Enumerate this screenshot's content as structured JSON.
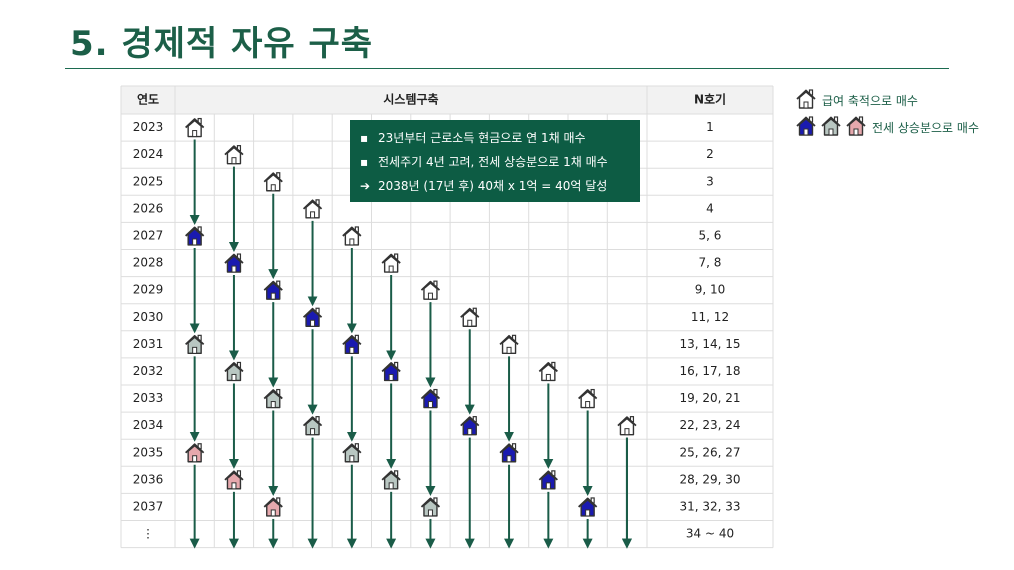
{
  "title": "5. 경제적 자유 구축",
  "table": {
    "headers": {
      "year": "연도",
      "system": "시스템구축",
      "count": "N호기"
    },
    "years": [
      "2023",
      "2024",
      "2025",
      "2026",
      "2027",
      "2028",
      "2029",
      "2030",
      "2031",
      "2032",
      "2033",
      "2034",
      "2035",
      "2036",
      "2037",
      "⋮"
    ],
    "counts": [
      "1",
      "2",
      "3",
      "4",
      "5, 6",
      "7, 8",
      "9, 10",
      "11, 12",
      "13, 14, 15",
      "16, 17, 18",
      "19, 20, 21",
      "22, 23, 24",
      "25, 26, 27",
      "28, 29, 30",
      "31, 32, 33",
      "34 ~ 40"
    ]
  },
  "houses": [
    {
      "row": 0,
      "col": 0,
      "style": "outline"
    },
    {
      "row": 1,
      "col": 1,
      "style": "outline"
    },
    {
      "row": 2,
      "col": 2,
      "style": "outline"
    },
    {
      "row": 3,
      "col": 3,
      "style": "outline"
    },
    {
      "row": 4,
      "col": 4,
      "style": "outline"
    },
    {
      "row": 5,
      "col": 5,
      "style": "outline"
    },
    {
      "row": 6,
      "col": 6,
      "style": "outline"
    },
    {
      "row": 7,
      "col": 7,
      "style": "outline"
    },
    {
      "row": 8,
      "col": 8,
      "style": "outline"
    },
    {
      "row": 9,
      "col": 9,
      "style": "outline"
    },
    {
      "row": 10,
      "col": 10,
      "style": "outline"
    },
    {
      "row": 11,
      "col": 11,
      "style": "outline"
    },
    {
      "row": 4,
      "col": 0,
      "style": "blue"
    },
    {
      "row": 5,
      "col": 1,
      "style": "blue"
    },
    {
      "row": 6,
      "col": 2,
      "style": "blue"
    },
    {
      "row": 7,
      "col": 3,
      "style": "blue"
    },
    {
      "row": 8,
      "col": 4,
      "style": "blue"
    },
    {
      "row": 9,
      "col": 5,
      "style": "blue"
    },
    {
      "row": 10,
      "col": 6,
      "style": "blue"
    },
    {
      "row": 11,
      "col": 7,
      "style": "blue"
    },
    {
      "row": 12,
      "col": 8,
      "style": "blue"
    },
    {
      "row": 13,
      "col": 9,
      "style": "blue"
    },
    {
      "row": 14,
      "col": 10,
      "style": "blue"
    },
    {
      "row": 8,
      "col": 0,
      "style": "gray"
    },
    {
      "row": 9,
      "col": 1,
      "style": "gray"
    },
    {
      "row": 10,
      "col": 2,
      "style": "gray"
    },
    {
      "row": 11,
      "col": 3,
      "style": "gray"
    },
    {
      "row": 12,
      "col": 4,
      "style": "gray"
    },
    {
      "row": 13,
      "col": 5,
      "style": "gray"
    },
    {
      "row": 14,
      "col": 6,
      "style": "gray"
    },
    {
      "row": 12,
      "col": 0,
      "style": "pink"
    },
    {
      "row": 13,
      "col": 1,
      "style": "pink"
    },
    {
      "row": 14,
      "col": 2,
      "style": "pink"
    }
  ],
  "callout": {
    "line1": "23년부터 근로소득 현금으로 연 1채 매수",
    "line2": "전세주기 4년 고려, 전세 상승분으로 1채 매수",
    "line3": "2038년 (17년 후) 40채 x 1억 = 40억 달성",
    "bullet": "▪",
    "arrow": "➔"
  },
  "legend": {
    "item1": "급여 축적으로 매수",
    "item2": "전세 상승분으로 매수"
  },
  "colors": {
    "accent": "#1c5f48",
    "arrow": "#1a5c48",
    "blue": "#1a1ab0",
    "gray": "#b9c7c2",
    "pink": "#e6a8ad",
    "header_bg": "#f2f2f2",
    "grid": "#dddddd"
  }
}
